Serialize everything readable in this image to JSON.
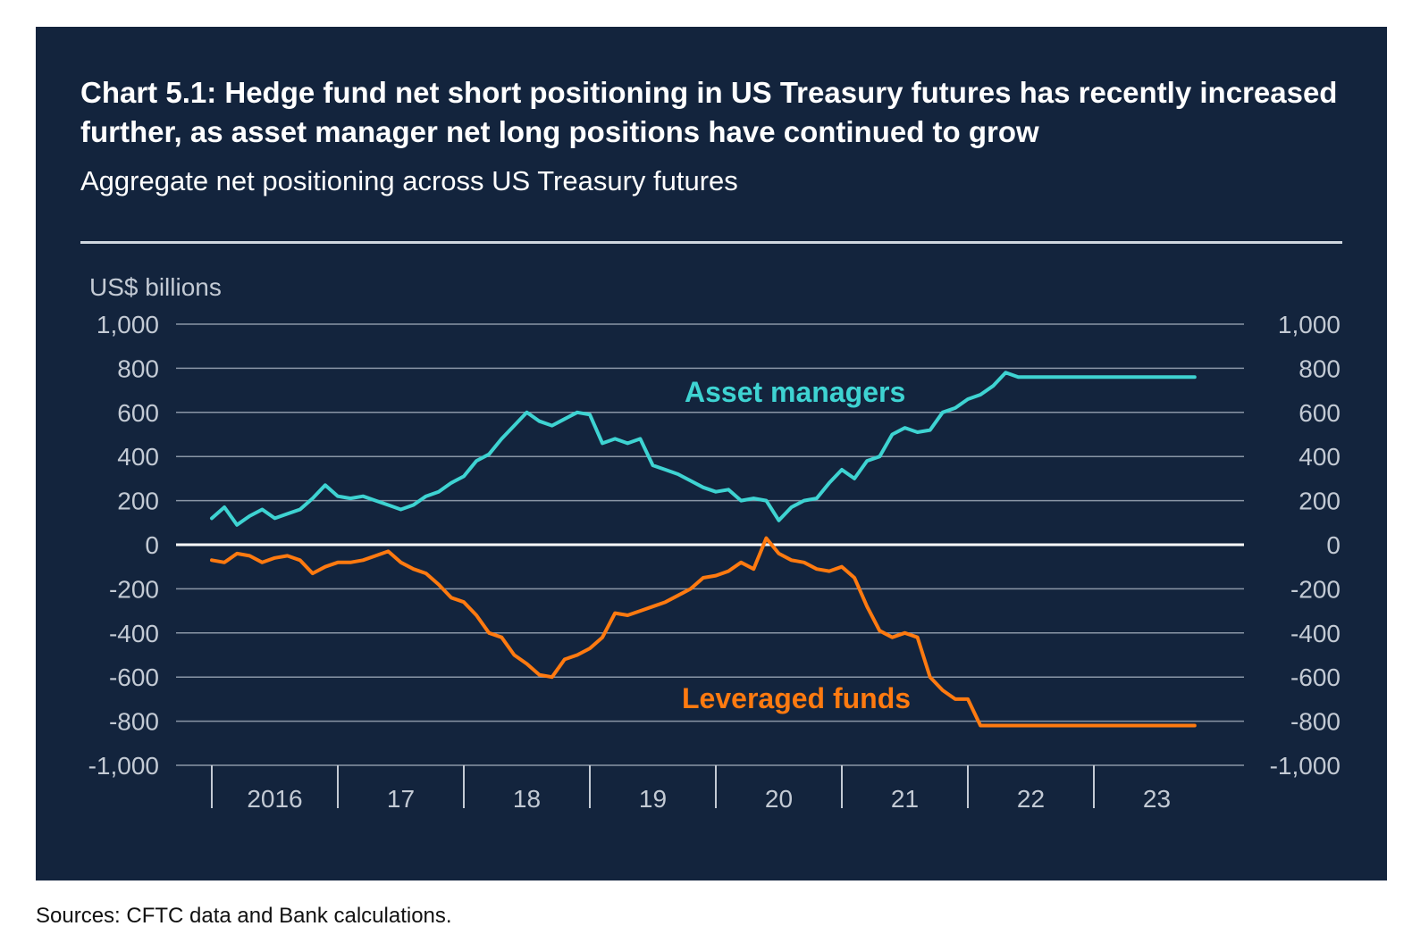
{
  "title": "Chart 5.1: Hedge fund net short positioning in US Treasury futures has recently increased further, as asset manager net long positions have continued to grow",
  "subtitle": "Aggregate net positioning across US Treasury futures",
  "source": "Sources: CFTC data and Bank calculations.",
  "colors": {
    "background": "#13243d",
    "asset_managers": "#3ed3d2",
    "leveraged_funds": "#ff7a10",
    "grid": "#8a96a6",
    "zero_line": "#ffffff"
  },
  "chart_data": {
    "type": "line",
    "title": "Chart 5.1: Hedge fund net short positioning in US Treasury futures has recently increased further, as asset manager net long positions have continued to grow",
    "subtitle": "Aggregate net positioning across US Treasury futures",
    "ylabel": "US$ billions",
    "ylim": [
      -1000,
      1000
    ],
    "yticks": [
      1000,
      800,
      600,
      400,
      200,
      0,
      -200,
      -400,
      -600,
      -800,
      -1000
    ],
    "ytick_labels": [
      "1,000",
      "800",
      "600",
      "400",
      "200",
      "0",
      "-200",
      "-400",
      "-600",
      "-800",
      "-1,000"
    ],
    "xlim": [
      2016.0,
      2024.0
    ],
    "x_category_labels": [
      "2016",
      "17",
      "18",
      "19",
      "20",
      "21",
      "22",
      "23"
    ],
    "grid": true,
    "legend": "inline labels",
    "series": [
      {
        "name": "Asset managers",
        "x": [
          2016.0,
          2016.1,
          2016.2,
          2016.3,
          2016.4,
          2016.5,
          2016.6,
          2016.7,
          2016.8,
          2016.9,
          2017.0,
          2017.1,
          2017.2,
          2017.3,
          2017.4,
          2017.5,
          2017.6,
          2017.7,
          2017.8,
          2017.9,
          2018.0,
          2018.1,
          2018.2,
          2018.3,
          2018.4,
          2018.5,
          2018.6,
          2018.7,
          2018.8,
          2018.9,
          2019.0,
          2019.1,
          2019.2,
          2019.3,
          2019.4,
          2019.5,
          2019.6,
          2019.7,
          2019.8,
          2019.9,
          2020.0,
          2020.1,
          2020.2,
          2020.3,
          2020.4,
          2020.5,
          2020.6,
          2020.7,
          2020.8,
          2020.9,
          2021.0,
          2021.1,
          2021.2,
          2021.3,
          2021.4,
          2021.5,
          2021.6,
          2021.7,
          2021.8,
          2021.9,
          2022.0,
          2022.1,
          2022.2,
          2022.3,
          2022.4,
          2022.5,
          2022.6,
          2022.7,
          2022.8,
          2022.9,
          2023.0,
          2023.1,
          2023.2,
          2023.3,
          2023.4,
          2023.5,
          2023.6,
          2023.7,
          2023.8
        ],
        "values": [
          120,
          170,
          90,
          130,
          160,
          120,
          140,
          160,
          210,
          270,
          220,
          210,
          220,
          200,
          180,
          160,
          180,
          220,
          240,
          280,
          310,
          380,
          410,
          480,
          540,
          600,
          560,
          540,
          570,
          600,
          590,
          460,
          480,
          460,
          480,
          360,
          340,
          320,
          290,
          260,
          240,
          250,
          200,
          210,
          200,
          110,
          170,
          200,
          210,
          280,
          340,
          300,
          380,
          400,
          500,
          530,
          510,
          520,
          600,
          620,
          660,
          680,
          720,
          780,
          760,
          760,
          760,
          760,
          760,
          760,
          760,
          760,
          760,
          760,
          760,
          760,
          760,
          760,
          760
        ]
      },
      {
        "name": "Leveraged funds",
        "x": [
          2016.0,
          2016.1,
          2016.2,
          2016.3,
          2016.4,
          2016.5,
          2016.6,
          2016.7,
          2016.8,
          2016.9,
          2017.0,
          2017.1,
          2017.2,
          2017.3,
          2017.4,
          2017.5,
          2017.6,
          2017.7,
          2017.8,
          2017.9,
          2018.0,
          2018.1,
          2018.2,
          2018.3,
          2018.4,
          2018.5,
          2018.6,
          2018.7,
          2018.8,
          2018.9,
          2019.0,
          2019.1,
          2019.2,
          2019.3,
          2019.4,
          2019.5,
          2019.6,
          2019.7,
          2019.8,
          2019.9,
          2020.0,
          2020.1,
          2020.2,
          2020.3,
          2020.4,
          2020.5,
          2020.6,
          2020.7,
          2020.8,
          2020.9,
          2021.0,
          2021.1,
          2021.2,
          2021.3,
          2021.4,
          2021.5,
          2021.6,
          2021.7,
          2021.8,
          2021.9,
          2022.0,
          2022.1,
          2022.2,
          2022.3,
          2022.4,
          2022.5,
          2022.6,
          2022.7,
          2022.8,
          2022.9,
          2023.0,
          2023.1,
          2023.2,
          2023.3,
          2023.4,
          2023.5,
          2023.6,
          2023.7,
          2023.8
        ],
        "values": [
          -70,
          -80,
          -40,
          -50,
          -80,
          -60,
          -50,
          -70,
          -130,
          -100,
          -80,
          -80,
          -70,
          -50,
          -30,
          -80,
          -110,
          -130,
          -180,
          -240,
          -260,
          -320,
          -400,
          -420,
          -500,
          -540,
          -590,
          -600,
          -520,
          -500,
          -470,
          -420,
          -310,
          -320,
          -300,
          -280,
          -260,
          -230,
          -200,
          -150,
          -140,
          -120,
          -80,
          -110,
          30,
          -40,
          -70,
          -80,
          -110,
          -120,
          -100,
          -150,
          -280,
          -390,
          -420,
          -400,
          -420,
          -600,
          -660,
          -700,
          -700,
          -820,
          -820,
          -820,
          -820,
          -820,
          -820,
          -820,
          -820,
          -820,
          -820,
          -820,
          -820,
          -820,
          -820,
          -820,
          -820,
          -820,
          -820
        ]
      }
    ]
  }
}
